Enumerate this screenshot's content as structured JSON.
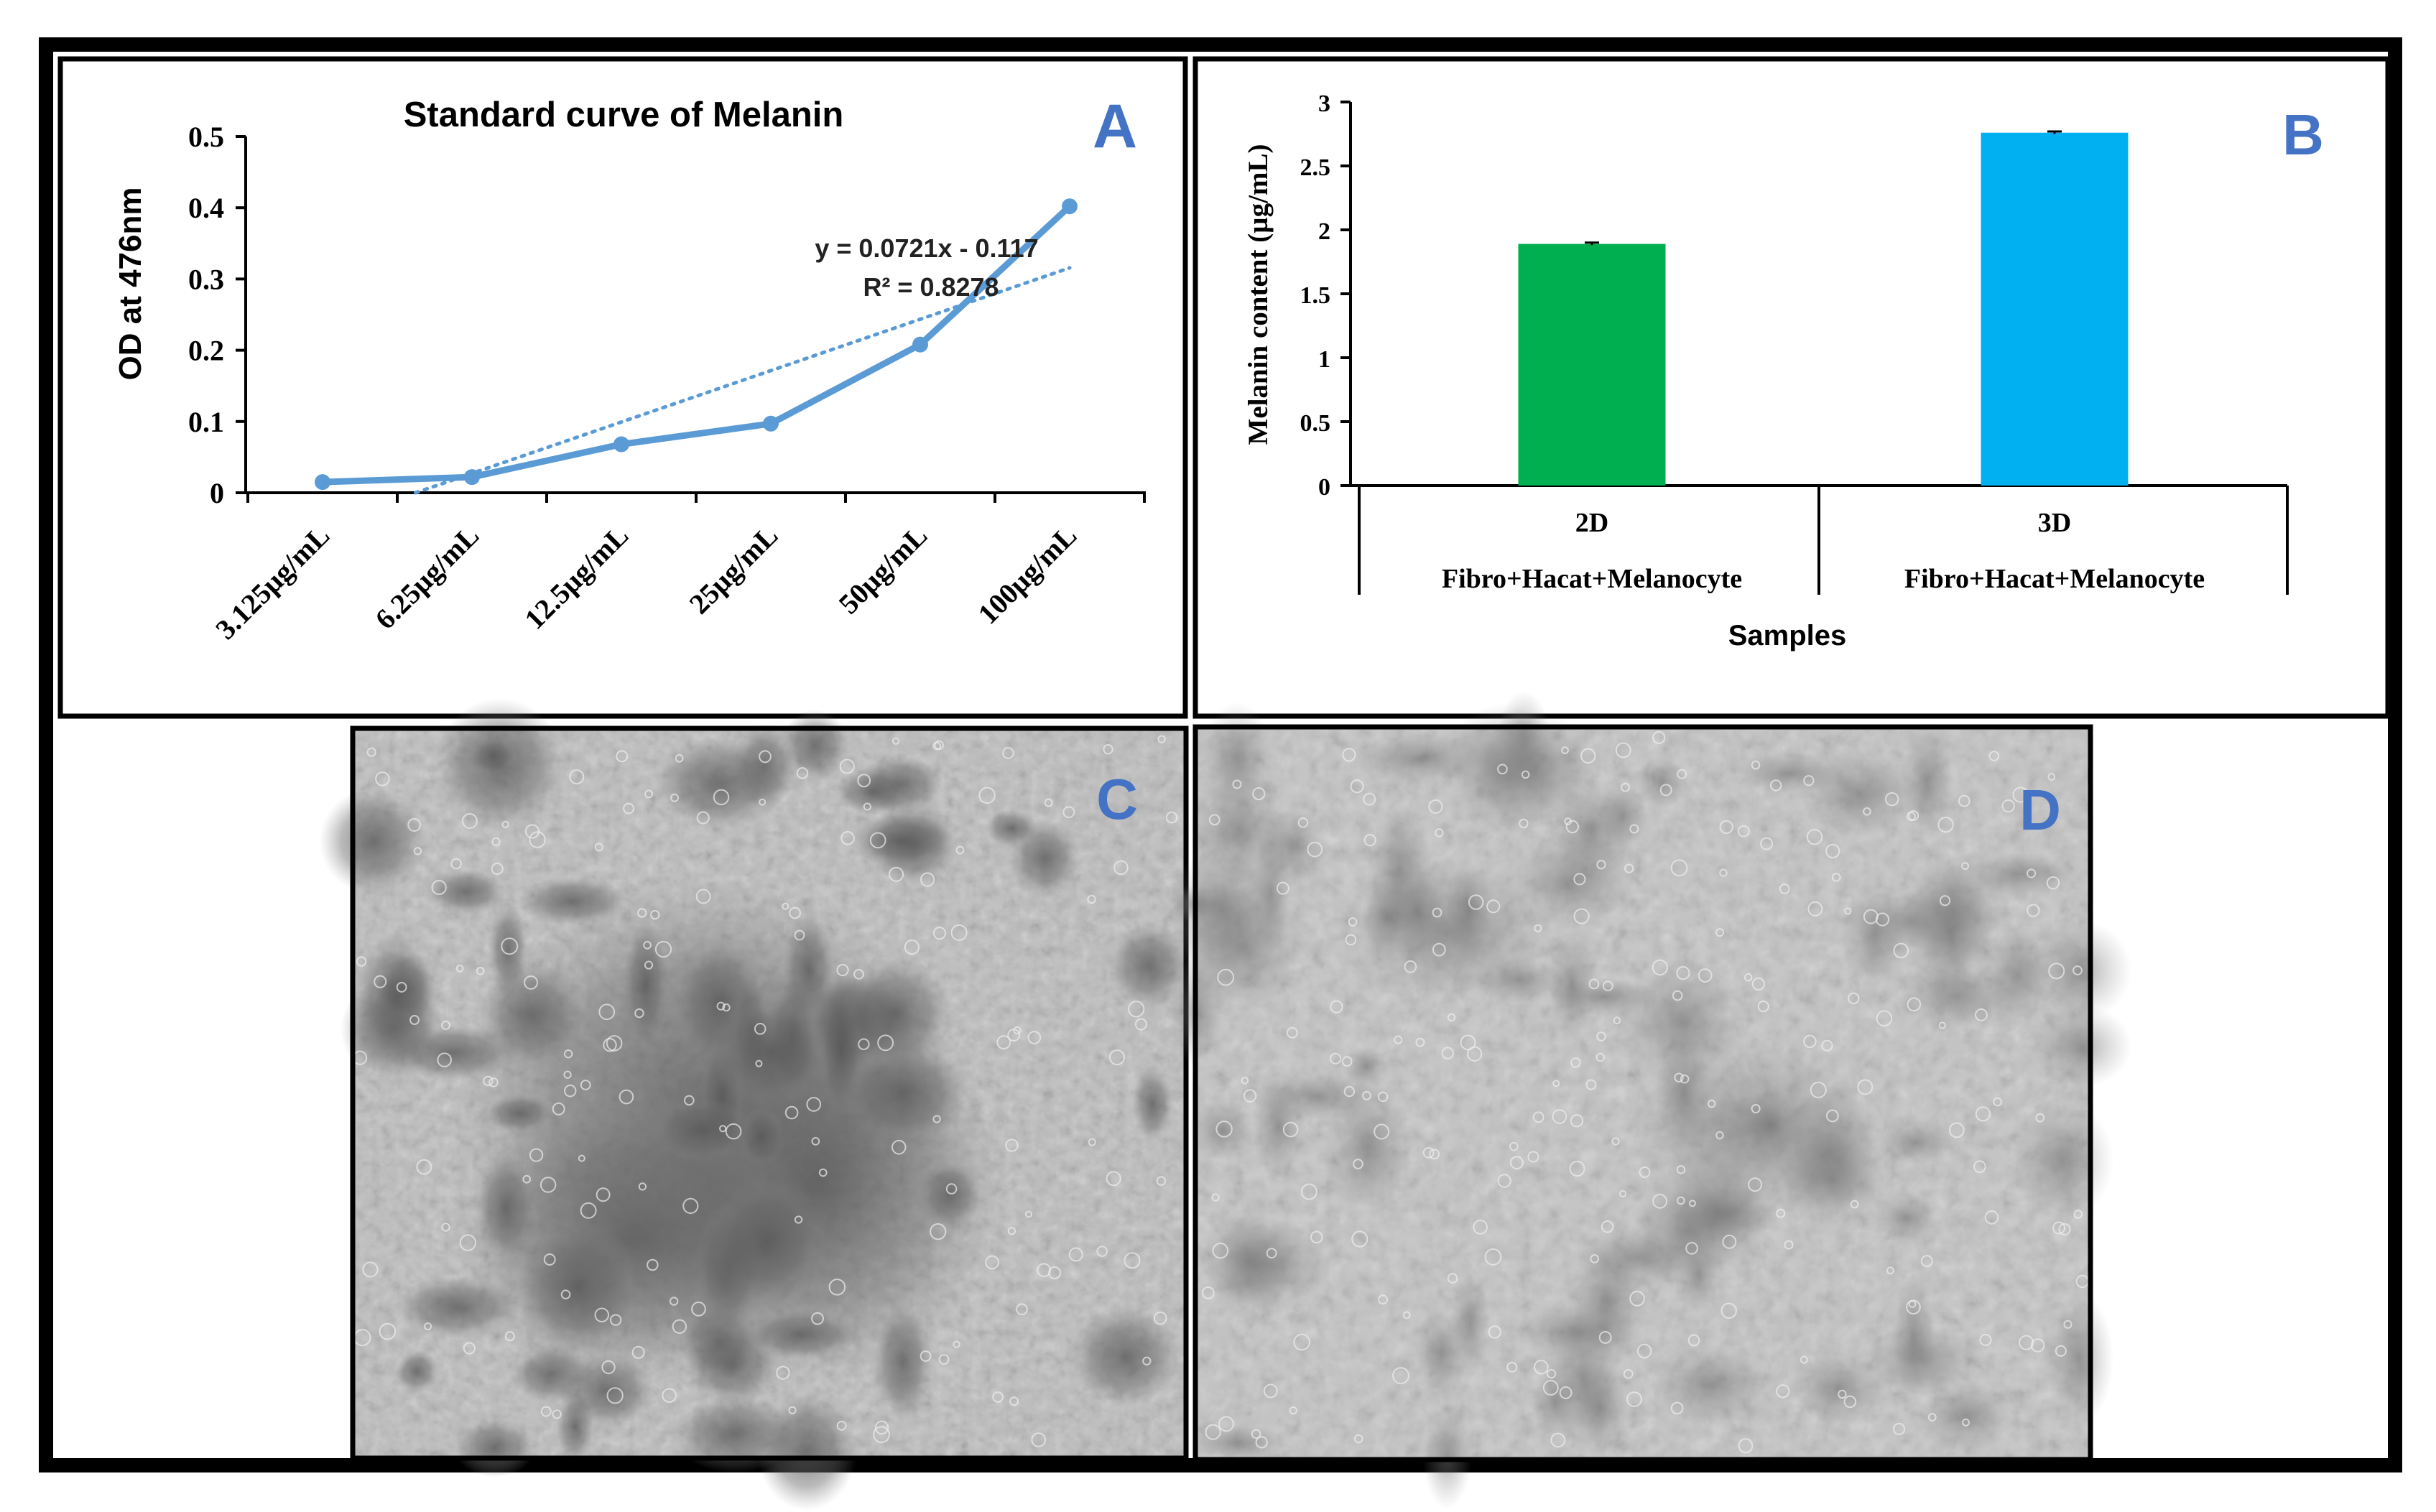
{
  "chart_data": [
    {
      "type": "line",
      "panel_label": "A",
      "title": "Standard curve of Melanin",
      "xlabel": "",
      "ylabel": "OD at 476nm",
      "categories": [
        "3.125µg/mL",
        "6.25µg/mL",
        "12.5µg/mL",
        "25µg/mL",
        "50µg/mL",
        "100µg/mL"
      ],
      "series": [
        {
          "values": [
            0.015,
            0.022,
            0.068,
            0.097,
            0.208,
            0.402
          ]
        }
      ],
      "trendline": {
        "type": "linear",
        "equation": "y = 0.0721x - 0.117",
        "r_squared": "R² = 0.8278",
        "slope": 0.0721,
        "intercept": -0.117
      },
      "ylim": [
        0,
        0.5
      ],
      "yticks": [
        "0",
        "0.1",
        "0.2",
        "0.3",
        "0.4",
        "0.5"
      ],
      "grid": false,
      "line_color": "#5B9BD5"
    },
    {
      "type": "bar",
      "panel_label": "B",
      "title": "",
      "xlabel": "Samples",
      "ylabel": "Melanin content (µg/mL)",
      "categories": [
        {
          "top": "2D",
          "bottom": "Fibro+Hacat+Melanocyte"
        },
        {
          "top": "3D",
          "bottom": "Fibro+Hacat+Melanocyte"
        }
      ],
      "values": [
        1.89,
        2.76
      ],
      "errors": [
        0.01,
        0.01
      ],
      "bar_colors": [
        "#00B050",
        "#00B0F0"
      ],
      "ylim": [
        0,
        3
      ],
      "yticks": [
        "0",
        "0.5",
        "1",
        "1.5",
        "2",
        "2.5",
        "3"
      ],
      "grid": false
    }
  ],
  "micrographs": [
    {
      "panel_label": "C"
    },
    {
      "panel_label": "D"
    }
  ],
  "colors": {
    "panel_label": "#4472C4",
    "frame": "#000000"
  }
}
